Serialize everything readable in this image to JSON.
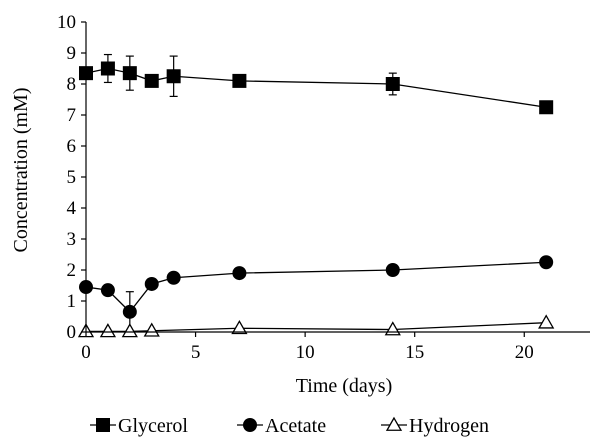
{
  "chart_data": {
    "type": "scatter",
    "title": "",
    "xlabel": "Time (days)",
    "ylabel": "Concentration (mM)",
    "xlim": [
      0,
      23
    ],
    "ylim": [
      0,
      10
    ],
    "xticks": [
      0,
      5,
      10,
      15,
      20
    ],
    "yticks": [
      0,
      1,
      2,
      3,
      4,
      5,
      6,
      7,
      8,
      9,
      10
    ],
    "grid": false,
    "legend_position": "bottom",
    "line_color": "#000000",
    "series": [
      {
        "name": "Glycerol",
        "marker": "square",
        "x": [
          0,
          1,
          2,
          3,
          4,
          7,
          14,
          21
        ],
        "y": [
          8.35,
          8.5,
          8.35,
          8.1,
          8.25,
          8.1,
          8.0,
          7.25
        ],
        "err": [
          0,
          0.45,
          0.55,
          0,
          0.65,
          0,
          0.35,
          0
        ]
      },
      {
        "name": "Acetate",
        "marker": "circle",
        "x": [
          0,
          1,
          2,
          3,
          4,
          7,
          14,
          21
        ],
        "y": [
          1.45,
          1.35,
          0.65,
          1.55,
          1.75,
          1.9,
          2.0,
          2.25
        ],
        "err": [
          0,
          0,
          0.65,
          0,
          0,
          0,
          0,
          0
        ]
      },
      {
        "name": "Hydrogen",
        "marker": "open-triangle",
        "x": [
          0,
          1,
          2,
          3,
          7,
          14,
          21
        ],
        "y": [
          0.02,
          0.02,
          0.02,
          0.04,
          0.12,
          0.08,
          0.3
        ],
        "err": [
          0,
          0,
          0,
          0,
          0,
          0,
          0
        ]
      }
    ]
  }
}
